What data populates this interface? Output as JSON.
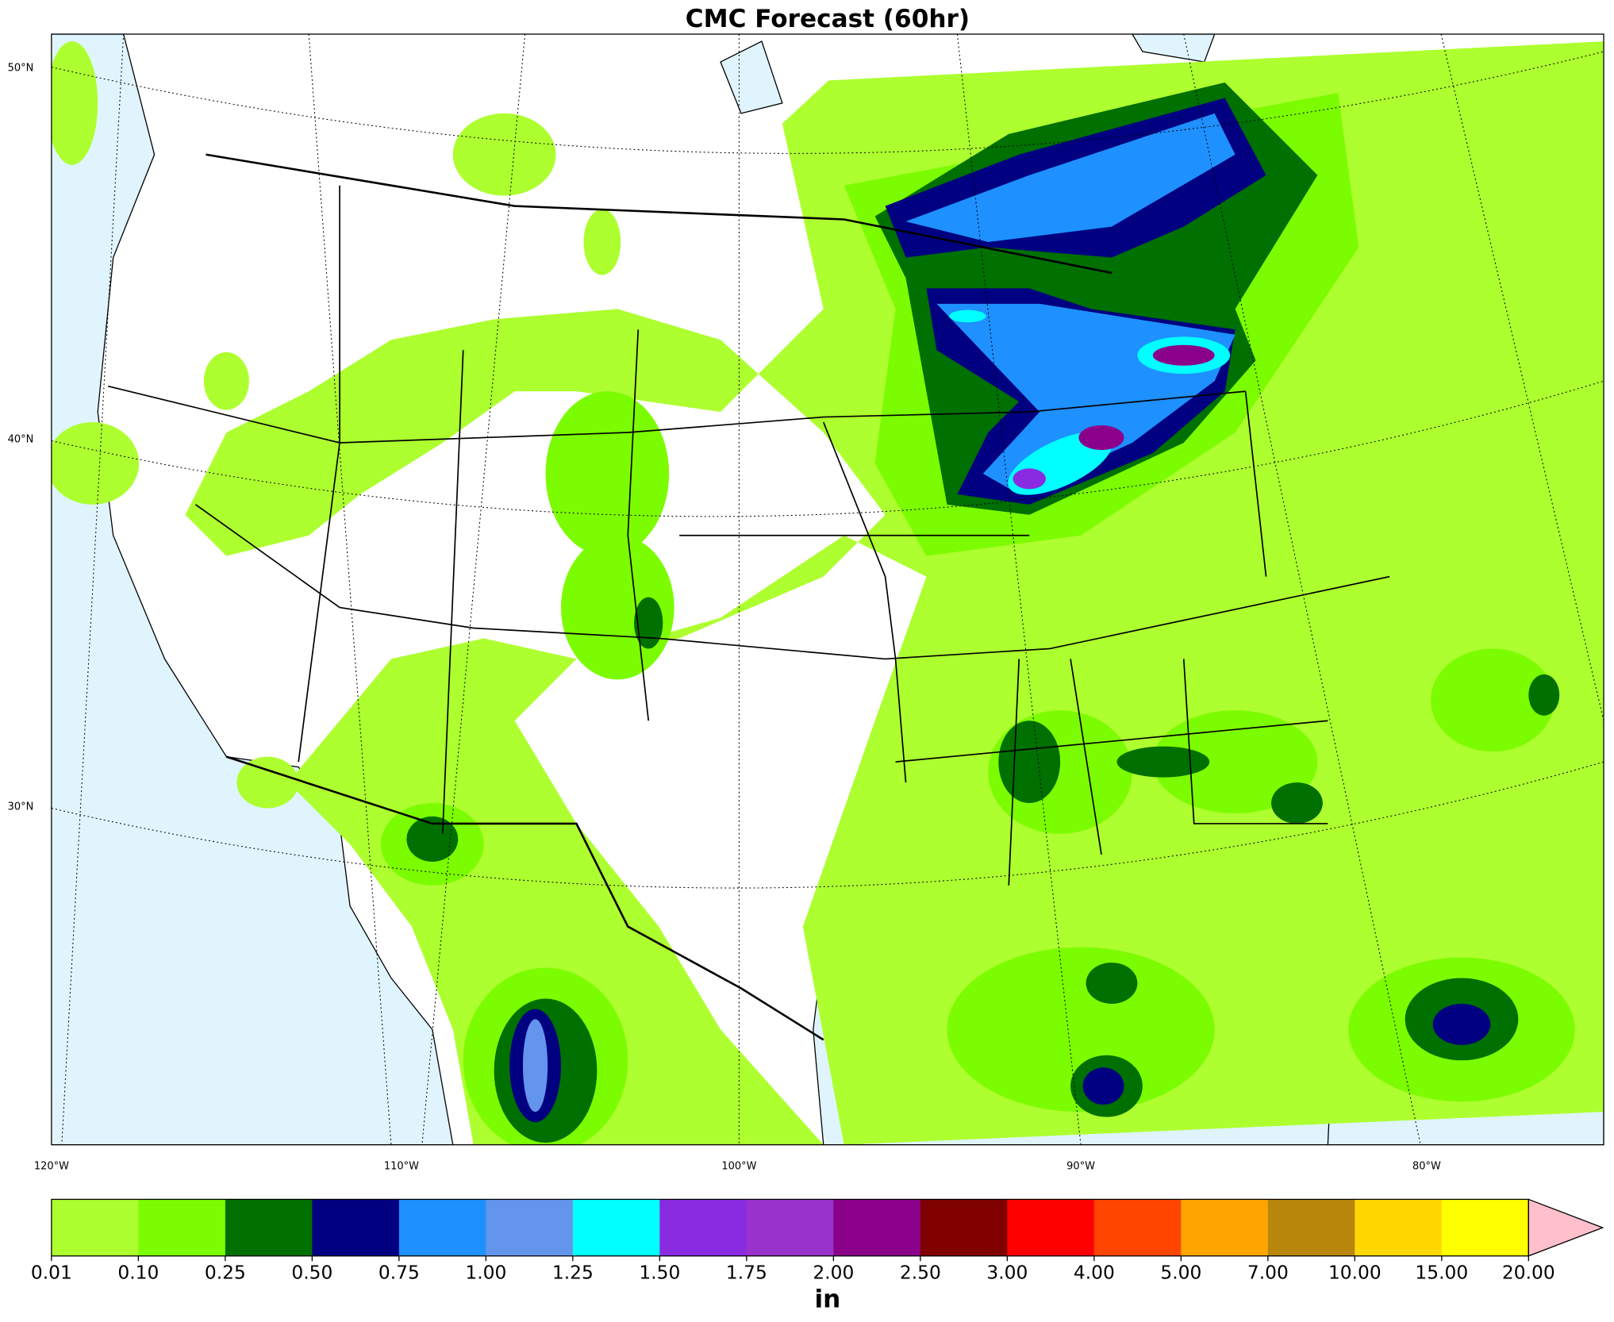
{
  "title": "CMC Forecast (60hr)",
  "map": {
    "lat_labels": [
      "50°N",
      "40°N",
      "30°N"
    ],
    "lon_labels": [
      "120°W",
      "110°W",
      "100°W",
      "90°W",
      "80°W"
    ]
  },
  "colorbar": {
    "label": "in",
    "ticks": [
      0.01,
      {
        "value": 0.1,
        "label": "0.10"
      },
      0.25,
      {
        "value": 0.5,
        "label": "0.50"
      },
      0.75,
      {
        "value": 1,
        "label": "1.00"
      },
      1.25,
      {
        "value": 1.5,
        "label": "1.50"
      },
      1.75,
      {
        "value": 2,
        "label": "2.00"
      },
      {
        "value": 2.5,
        "label": "2.50"
      },
      {
        "value": 3,
        "label": "3.00"
      },
      {
        "value": 4,
        "label": "4.00"
      },
      {
        "value": 5,
        "label": "5.00"
      },
      {
        "value": 7,
        "label": "7.00"
      },
      {
        "value": 10,
        "label": "10.00"
      },
      {
        "value": 15,
        "label": "15.00"
      },
      {
        "value": 20,
        "label": "20.00"
      }
    ],
    "colors": [
      "#adff2f",
      "#7cfc00",
      "#007000",
      "#000080",
      "#1e90ff",
      "#6495ed",
      "#00ffff",
      "#8a2be2",
      "#9932cc",
      "#8b008b",
      "#800000",
      "#ff0000",
      "#ff4500",
      "#ffa500",
      "#b8860b",
      "#ffd700",
      "#ffff00"
    ],
    "extend_color": "#ffc0cb"
  }
}
